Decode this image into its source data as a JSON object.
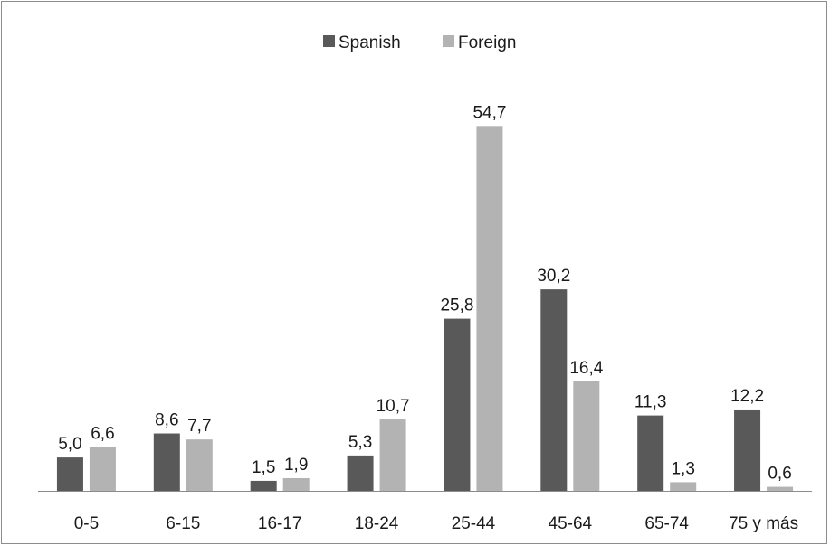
{
  "chart_data": {
    "type": "bar",
    "title": "",
    "xlabel": "",
    "ylabel": "",
    "ylim": [
      0,
      60
    ],
    "grid": false,
    "legend_position": "top",
    "categories": [
      "0-5",
      "6-15",
      "16-17",
      "18-24",
      "25-44",
      "45-64",
      "65-74",
      "75 y más"
    ],
    "series": [
      {
        "name": "Spanish",
        "color": "#595959",
        "values": [
          5.0,
          8.6,
          1.5,
          5.3,
          25.8,
          30.2,
          11.3,
          12.2
        ],
        "labels": [
          "5,0",
          "8,6",
          "1,5",
          "5,3",
          "25,8",
          "30,2",
          "11,3",
          "12,2"
        ]
      },
      {
        "name": "Foreign",
        "color": "#b3b3b3",
        "values": [
          6.6,
          7.7,
          1.9,
          10.7,
          54.7,
          16.4,
          1.3,
          0.6
        ],
        "labels": [
          "6,6",
          "7,7",
          "1,9",
          "10,7",
          "54,7",
          "16,4",
          "1,3",
          "0,6"
        ]
      }
    ]
  }
}
